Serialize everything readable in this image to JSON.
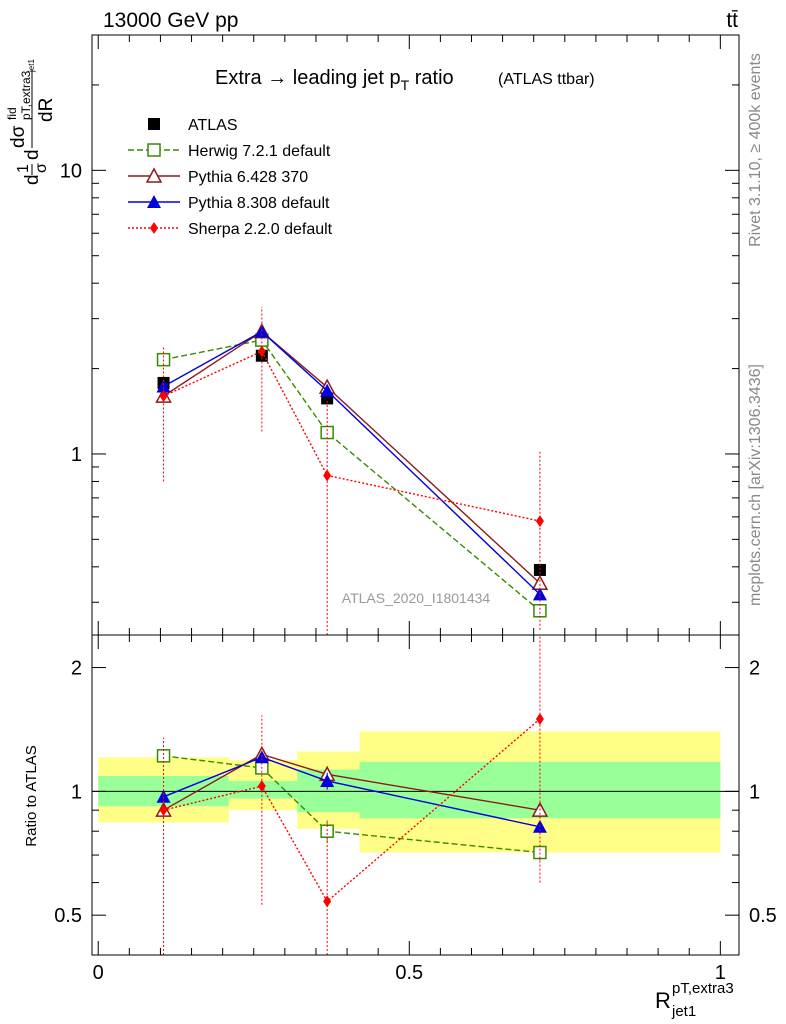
{
  "header": {
    "left": "13000 GeV pp",
    "right": "tt̄"
  },
  "side_labels": {
    "rivet": "Rivet 3.1.10, ≥ 400k events",
    "mcplots": "mcplots.cern.ch [arXiv:1306.3436]"
  },
  "chart_data": [
    {
      "type": "line",
      "panel": "main",
      "title": "Extra → leading jet p",
      "title_sub": "T",
      "title_rest": " ratio",
      "title_suffix": "(ATLAS ttbar)",
      "watermark": "ATLAS_2020_I1801434",
      "ylabel_parts": [
        "d",
        "1",
        "σ",
        "d",
        "dσ",
        "fid",
        "pT,extra3",
        "jet1",
        "dR"
      ],
      "yscale": "log",
      "xlim": [
        -0.01,
        1.03
      ],
      "ylim": [
        0.23,
        30
      ],
      "y_ticks": [
        {
          "v": 1,
          "label": "1"
        },
        {
          "v": 10,
          "label": "10"
        }
      ],
      "x": [
        0.105,
        0.263,
        0.368,
        0.71
      ],
      "series": [
        {
          "name": "ATLAS",
          "color": "#000000",
          "marker": "square-filled",
          "dash": "",
          "values": [
            1.78,
            2.22,
            1.57,
            0.39
          ],
          "err_lo": [
            0.05,
            0.05,
            0.05,
            0.02
          ],
          "err_hi": [
            0.05,
            0.05,
            0.05,
            0.02
          ]
        },
        {
          "name": "Herwig 7.2.1 default",
          "color": "#3a8a00",
          "marker": "square-open",
          "dash": "6,3",
          "values": [
            2.15,
            2.52,
            1.19,
            0.28
          ],
          "err_lo": [
            0.08,
            0.08,
            0.06,
            0.01
          ],
          "err_hi": [
            0.08,
            0.08,
            0.06,
            0.01
          ]
        },
        {
          "name": "Pythia 6.428 370",
          "color": "#8b1a1a",
          "marker": "triangle-open",
          "dash": "",
          "values": [
            1.6,
            2.7,
            1.72,
            0.35
          ],
          "err_lo": [
            0.05,
            0.07,
            0.06,
            0.01
          ],
          "err_hi": [
            0.05,
            0.07,
            0.06,
            0.01
          ]
        },
        {
          "name": "Pythia 8.308 default",
          "color": "#0000dd",
          "marker": "triangle-filled",
          "dash": "",
          "values": [
            1.73,
            2.7,
            1.67,
            0.32
          ],
          "err_lo": [
            0.05,
            0.07,
            0.06,
            0.01
          ],
          "err_hi": [
            0.05,
            0.07,
            0.06,
            0.01
          ]
        },
        {
          "name": "Sherpa 2.2.0 default",
          "color": "#ff0000",
          "marker": "diamond-filled",
          "dash": "2,2",
          "values": [
            1.6,
            2.3,
            0.84,
            0.58
          ],
          "err_lo": [
            0.8,
            1.1,
            0.7,
            0.34
          ],
          "err_hi": [
            0.8,
            1.0,
            0.7,
            0.45
          ]
        }
      ]
    },
    {
      "type": "line",
      "panel": "ratio",
      "ylabel": "Ratio to ATLAS",
      "xlabel_main": "R",
      "xlabel_sup": "pT,extra3",
      "xlabel_sub": "jet1",
      "xlim": [
        -0.01,
        1.03
      ],
      "ylim": [
        0.4,
        2.4
      ],
      "y_ticks": [
        {
          "v": 0.5,
          "label": "0.5"
        },
        {
          "v": 1,
          "label": "1"
        },
        {
          "v": 2,
          "label": "2"
        }
      ],
      "x_ticks": [
        {
          "v": 0,
          "label": "0"
        },
        {
          "v": 0.5,
          "label": "0.5"
        },
        {
          "v": 1,
          "label": "1"
        }
      ],
      "bands": [
        {
          "x0": 0.0,
          "x1": 0.21,
          "yellow": [
            0.84,
            1.21
          ],
          "green": [
            0.92,
            1.09
          ]
        },
        {
          "x0": 0.21,
          "x1": 0.32,
          "yellow": [
            0.9,
            1.19
          ],
          "green": [
            0.96,
            1.06
          ]
        },
        {
          "x0": 0.32,
          "x1": 0.42,
          "yellow": [
            0.81,
            1.25
          ],
          "green": [
            0.89,
            1.13
          ]
        },
        {
          "x0": 0.42,
          "x1": 1.0,
          "yellow": [
            0.71,
            1.4
          ],
          "green": [
            0.86,
            1.18
          ]
        }
      ],
      "x": [
        0.105,
        0.263,
        0.368,
        0.71
      ],
      "series": [
        {
          "name": "Herwig 7.2.1 default",
          "color": "#3a8a00",
          "marker": "square-open",
          "dash": "6,3",
          "values": [
            1.22,
            1.14,
            0.8,
            0.71
          ],
          "err_lo": [
            0.04,
            0.04,
            0.05,
            0.03
          ],
          "err_hi": [
            0.04,
            0.04,
            0.05,
            0.03
          ]
        },
        {
          "name": "Pythia 6.428 370",
          "color": "#8b1a1a",
          "marker": "triangle-open",
          "dash": "",
          "values": [
            0.9,
            1.23,
            1.1,
            0.9
          ],
          "err_lo": [
            0.03,
            0.04,
            0.05,
            0.03
          ],
          "err_hi": [
            0.03,
            0.04,
            0.05,
            0.03
          ]
        },
        {
          "name": "Pythia 8.308 default",
          "color": "#0000dd",
          "marker": "triangle-filled",
          "dash": "",
          "values": [
            0.97,
            1.21,
            1.06,
            0.82
          ],
          "err_lo": [
            0.03,
            0.04,
            0.05,
            0.03
          ],
          "err_hi": [
            0.03,
            0.04,
            0.05,
            0.03
          ]
        },
        {
          "name": "Sherpa 2.2.0 default",
          "color": "#ff0000",
          "marker": "diamond-filled",
          "dash": "2,2",
          "values": [
            0.9,
            1.03,
            0.54,
            1.5
          ],
          "err_lo": [
            0.5,
            0.5,
            0.3,
            0.9
          ],
          "err_hi": [
            0.45,
            0.5,
            0.3,
            0.9
          ]
        }
      ]
    }
  ]
}
